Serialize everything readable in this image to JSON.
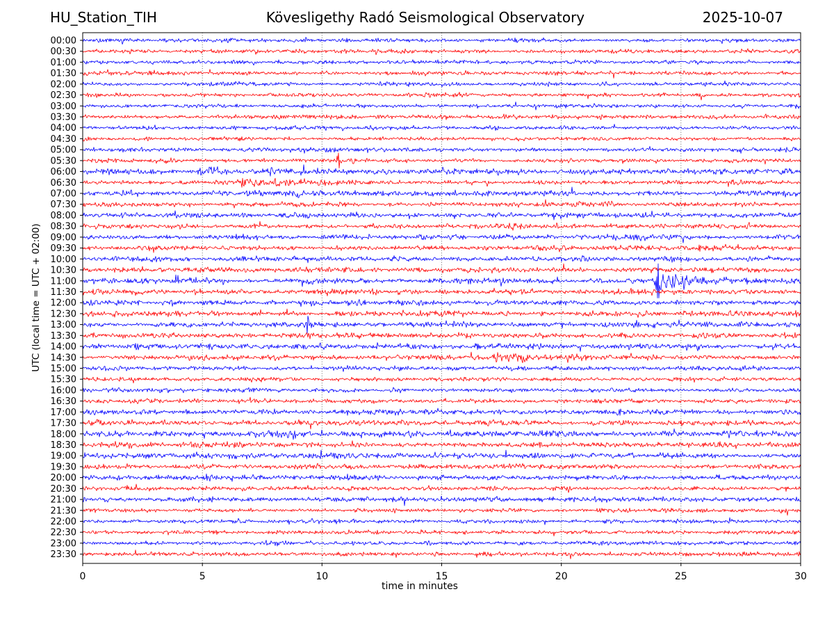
{
  "header": {
    "station": "HU_Station_TIH",
    "observatory": "Kövesligethy Radó Seismological Observatory",
    "date": "2025-10-07"
  },
  "chart_data": {
    "type": "line",
    "subtype": "helicorder_dayplot",
    "title": "HU_Station_TIH — Kövesligethy Radó Seismological Observatory — 2025-10-07",
    "xlabel": "time in minutes",
    "ylabel": "UTC (local time = UTC + 02:00)",
    "xlim": [
      0,
      30
    ],
    "x_ticks": [
      0,
      5,
      10,
      15,
      20,
      25,
      30
    ],
    "grid_minutes": [
      5,
      10,
      15,
      20,
      25
    ],
    "minutes_per_line": 30,
    "lines_per_day": 48,
    "legend": "none",
    "grid": "vertical dotted at 5-minute intervals",
    "colors": {
      "trace_blue": "#0000ff",
      "trace_red": "#ff0000",
      "grid": "#555555",
      "frame": "#000000",
      "text": "#000000",
      "background": "#ffffff"
    },
    "rows": [
      {
        "label": "00:00",
        "color": "blue",
        "base": 0.95
      },
      {
        "label": "00:30",
        "color": "red",
        "base": 0.95
      },
      {
        "label": "01:00",
        "color": "blue",
        "base": 0.95
      },
      {
        "label": "01:30",
        "color": "red",
        "base": 0.95
      },
      {
        "label": "02:00",
        "color": "blue",
        "base": 0.9
      },
      {
        "label": "02:30",
        "color": "red",
        "base": 0.95,
        "events": [
          {
            "t": 3.7,
            "amp": 1.4,
            "dur": 0.3
          }
        ]
      },
      {
        "label": "03:00",
        "color": "blue",
        "base": 0.95
      },
      {
        "label": "03:30",
        "color": "red",
        "base": 1.0
      },
      {
        "label": "04:00",
        "color": "blue",
        "base": 0.95
      },
      {
        "label": "04:30",
        "color": "red",
        "base": 0.95
      },
      {
        "label": "05:00",
        "color": "blue",
        "base": 0.95
      },
      {
        "label": "05:30",
        "color": "red",
        "base": 1.0,
        "events": [
          {
            "t": 10.7,
            "amp": 2.8,
            "dur": 0.5
          },
          {
            "t": 11.3,
            "amp": 1.6,
            "dur": 0.3
          }
        ]
      },
      {
        "label": "06:00",
        "color": "blue",
        "base": 1.35,
        "events": [
          {
            "t": 2.1,
            "amp": 1.4,
            "dur": 0.3
          },
          {
            "t": 4.9,
            "amp": 1.9,
            "dur": 1.4
          },
          {
            "t": 7.8,
            "amp": 1.7,
            "dur": 2.2
          }
        ]
      },
      {
        "label": "06:30",
        "color": "red",
        "base": 1.05,
        "events": [
          {
            "t": 6.6,
            "amp": 2.6,
            "dur": 1.0
          },
          {
            "t": 7.7,
            "amp": 2.3,
            "dur": 1.1
          }
        ]
      },
      {
        "label": "07:00",
        "color": "blue",
        "base": 1.25,
        "events": [
          {
            "t": 0.9,
            "amp": 1.4,
            "dur": 0.7
          },
          {
            "t": 8.9,
            "amp": 1.5,
            "dur": 0.4
          },
          {
            "t": 13.2,
            "amp": 1.4,
            "dur": 0.4
          }
        ]
      },
      {
        "label": "07:30",
        "color": "red",
        "base": 1.1,
        "events": [
          {
            "t": 8.9,
            "amp": 1.7,
            "dur": 0.3
          },
          {
            "t": 21.8,
            "amp": 1.5,
            "dur": 0.4
          },
          {
            "t": 24.4,
            "amp": 1.4,
            "dur": 0.3
          }
        ]
      },
      {
        "label": "08:00",
        "color": "blue",
        "base": 1.2,
        "events": [
          {
            "t": 8.4,
            "amp": 2.2,
            "dur": 0.5
          }
        ]
      },
      {
        "label": "08:30",
        "color": "red",
        "base": 1.2,
        "events": [
          {
            "t": 22.0,
            "amp": 1.4,
            "dur": 0.4
          }
        ]
      },
      {
        "label": "09:00",
        "color": "blue",
        "base": 1.2,
        "events": [
          {
            "t": 2.2,
            "amp": 1.6,
            "dur": 0.3
          }
        ]
      },
      {
        "label": "09:30",
        "color": "red",
        "base": 1.2,
        "events": [
          {
            "t": 2.4,
            "amp": 1.5,
            "dur": 0.3
          },
          {
            "t": 6.0,
            "amp": 1.4,
            "dur": 0.3
          }
        ]
      },
      {
        "label": "10:00",
        "color": "blue",
        "base": 1.25
      },
      {
        "label": "10:30",
        "color": "red",
        "base": 1.35
      },
      {
        "label": "11:00",
        "color": "blue",
        "base": 1.3,
        "events": [
          {
            "t": 24.05,
            "amp": 5.5,
            "dur": 0.2
          },
          {
            "t": 24.2,
            "amp": 2.6,
            "dur": 2.2
          }
        ]
      },
      {
        "label": "11:30",
        "color": "red",
        "base": 1.3
      },
      {
        "label": "12:00",
        "color": "blue",
        "base": 1.25
      },
      {
        "label": "12:30",
        "color": "red",
        "base": 1.35
      },
      {
        "label": "13:00",
        "color": "blue",
        "base": 1.2,
        "events": [
          {
            "t": 9.4,
            "amp": 2.8,
            "dur": 0.25
          }
        ]
      },
      {
        "label": "13:30",
        "color": "red",
        "base": 1.35
      },
      {
        "label": "14:00",
        "color": "blue",
        "base": 1.3
      },
      {
        "label": "14:30",
        "color": "red",
        "base": 1.2,
        "events": [
          {
            "t": 17.3,
            "amp": 2.3,
            "dur": 0.8
          },
          {
            "t": 18.4,
            "amp": 2.5,
            "dur": 0.9
          },
          {
            "t": 20.2,
            "amp": 1.6,
            "dur": 0.4
          }
        ]
      },
      {
        "label": "15:00",
        "color": "blue",
        "base": 1.15
      },
      {
        "label": "15:30",
        "color": "red",
        "base": 1.0
      },
      {
        "label": "16:00",
        "color": "blue",
        "base": 1.0
      },
      {
        "label": "16:30",
        "color": "red",
        "base": 1.0
      },
      {
        "label": "17:00",
        "color": "blue",
        "base": 1.25,
        "events": [
          {
            "t": 24.8,
            "amp": 1.4,
            "dur": 0.4
          }
        ]
      },
      {
        "label": "17:30",
        "color": "red",
        "base": 1.25
      },
      {
        "label": "18:00",
        "color": "blue",
        "base": 1.4
      },
      {
        "label": "18:30",
        "color": "red",
        "base": 1.35
      },
      {
        "label": "19:00",
        "color": "blue",
        "base": 1.35
      },
      {
        "label": "19:30",
        "color": "red",
        "base": 1.15
      },
      {
        "label": "20:00",
        "color": "blue",
        "base": 1.25
      },
      {
        "label": "20:30",
        "color": "red",
        "base": 1.05
      },
      {
        "label": "21:00",
        "color": "blue",
        "base": 1.15
      },
      {
        "label": "21:30",
        "color": "red",
        "base": 0.95
      },
      {
        "label": "22:00",
        "color": "blue",
        "base": 0.95
      },
      {
        "label": "22:30",
        "color": "red",
        "base": 0.95
      },
      {
        "label": "23:00",
        "color": "blue",
        "base": 1.0
      },
      {
        "label": "23:30",
        "color": "red",
        "base": 1.0
      }
    ]
  }
}
